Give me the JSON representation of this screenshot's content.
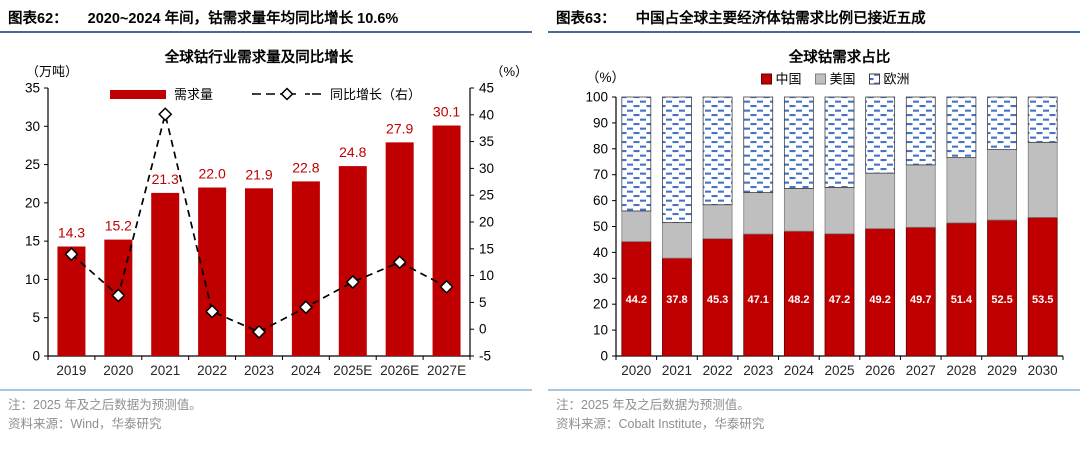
{
  "panels": [
    {
      "figure_label": "图表62：",
      "figure_title": "2020~2024 年间，钴需求量年均同比增长 10.6%",
      "note": "注：2025 年及之后数据为预测值。",
      "source": "资料来源：Wind，华泰研究"
    },
    {
      "figure_label": "图表63：",
      "figure_title": "中国占全球主要经济体钴需求比例已接近五成",
      "note": "注：2025 年及之后数据为预测值。",
      "source": "资料来源：Cobalt Institute，华泰研究"
    }
  ],
  "chart_data": [
    {
      "type": "bar",
      "subtype": "combo-bar-line",
      "title": "全球钴行业需求量及同比增长",
      "categories": [
        "2019",
        "2020",
        "2021",
        "2022",
        "2023",
        "2024",
        "2025E",
        "2026E",
        "2027E"
      ],
      "series": [
        {
          "name": "需求量",
          "kind": "bar",
          "axis": "left",
          "values": [
            14.3,
            15.2,
            21.3,
            22.0,
            21.9,
            22.8,
            24.8,
            27.9,
            30.1
          ],
          "labels": [
            "14.3",
            "15.2",
            "21.3",
            "22.0",
            "21.9",
            "22.8",
            "24.8",
            "27.9",
            "30.1"
          ],
          "color": "#c00000"
        },
        {
          "name": "同比增长（右）",
          "kind": "line",
          "axis": "right",
          "values": [
            14.0,
            6.3,
            40.1,
            3.3,
            -0.5,
            4.1,
            8.8,
            12.5,
            7.9
          ],
          "color": "#000000",
          "marker": "diamond"
        }
      ],
      "left_axis": {
        "label": "（万吨）",
        "min": 0,
        "max": 35,
        "step": 5
      },
      "right_axis": {
        "label": "（%）",
        "min": -5,
        "max": 45,
        "step": 5
      },
      "legend_position": "top",
      "grid": false,
      "value_label_color": "#c00000"
    },
    {
      "type": "bar",
      "subtype": "stacked-bar-100",
      "title": "全球钴需求占比",
      "categories": [
        "2020",
        "2021",
        "2022",
        "2023",
        "2024",
        "2025",
        "2026",
        "2027",
        "2028",
        "2029",
        "2030"
      ],
      "series": [
        {
          "name": "中国",
          "color": "#c00000",
          "style": "solid",
          "show_labels": true,
          "values": [
            44.2,
            37.8,
            45.3,
            47.1,
            48.2,
            47.2,
            49.2,
            49.7,
            51.4,
            52.5,
            53.5
          ],
          "labels": [
            "44.2",
            "37.8",
            "45.3",
            "47.1",
            "48.2",
            "47.2",
            "49.2",
            "49.7",
            "51.4",
            "52.5",
            "53.5"
          ]
        },
        {
          "name": "美国",
          "color": "#bfbfbf",
          "style": "solid",
          "show_labels": false,
          "values": [
            11.8,
            13.7,
            13.1,
            16.0,
            16.5,
            17.9,
            21.4,
            24.1,
            25.2,
            27.2,
            29.0
          ]
        },
        {
          "name": "欧洲",
          "color": "#4472c4",
          "style": "hatch-dash",
          "show_labels": false,
          "values": [
            44.0,
            48.5,
            41.6,
            36.9,
            35.3,
            34.9,
            29.4,
            26.2,
            23.4,
            20.3,
            17.5
          ]
        }
      ],
      "y_axis": {
        "label": "（%）",
        "min": 0,
        "max": 100,
        "step": 10
      },
      "legend_position": "top",
      "grid": false,
      "segment_label_color": "#ffffff"
    }
  ]
}
